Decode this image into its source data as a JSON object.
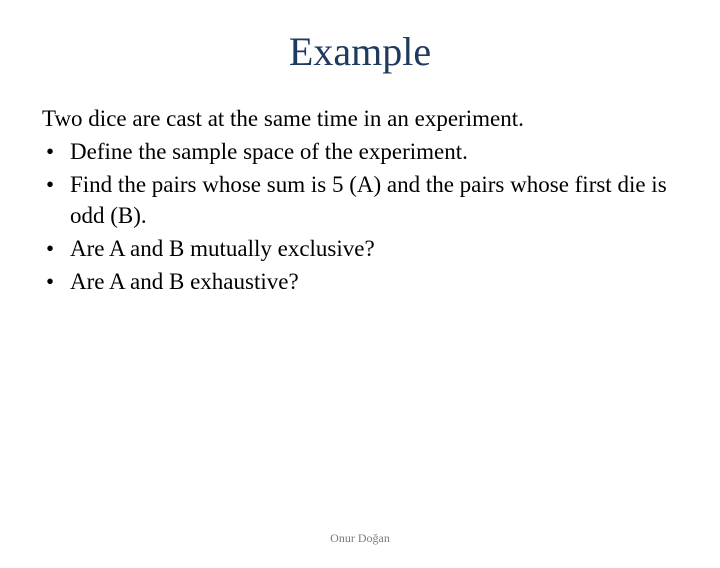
{
  "title": "Example",
  "title_color": "#1f3a5f",
  "title_fontsize": 40,
  "body_fontsize": 23,
  "intro": "Two dice are cast at the same time in an experiment.",
  "bullets": [
    "Define the sample space of the experiment.",
    "Find the pairs whose sum is 5 (A) and the pairs whose first die is odd (B).",
    "Are A and B mutually exclusive?",
    "Are A and B exhaustive?"
  ],
  "footer": "Onur Doğan",
  "footer_color": "#7a7a7a",
  "footer_fontsize": 12,
  "background_color": "#ffffff"
}
